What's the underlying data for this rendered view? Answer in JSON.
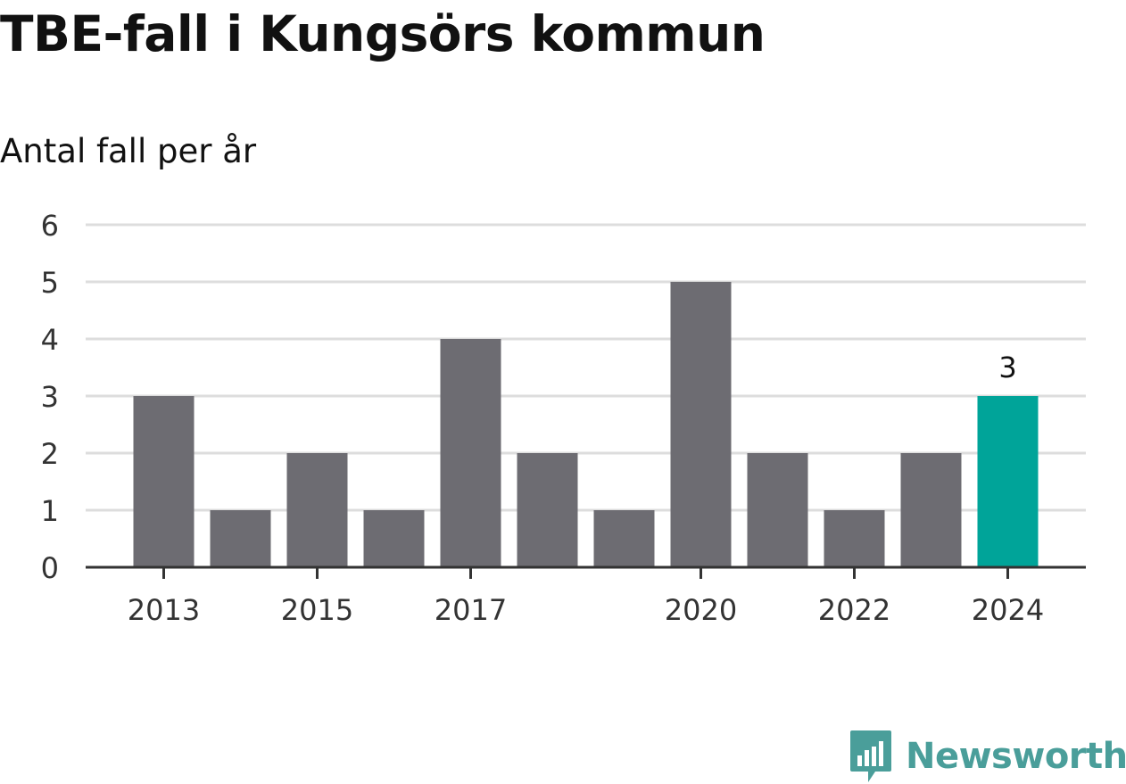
{
  "title": "TBE-fall i Kungsörs kommun",
  "subtitle": "Antal fall per år",
  "brand": "Newsworthy",
  "colors": {
    "bar": "#6d6c72",
    "highlight": "#00a499",
    "grid": "#dddddd",
    "axis": "#333333",
    "brand": "#4a9e9a"
  },
  "chart_data": {
    "type": "bar",
    "title": "TBE-fall i Kungsörs kommun",
    "subtitle": "Antal fall per år",
    "xlabel": "",
    "ylabel": "",
    "categories": [
      "2013",
      "2014",
      "2015",
      "2016",
      "2017",
      "2018",
      "2019",
      "2020",
      "2021",
      "2022",
      "2023",
      "2024"
    ],
    "values": [
      3,
      1,
      2,
      1,
      4,
      2,
      1,
      5,
      2,
      1,
      2,
      3
    ],
    "x_tick_labels": [
      "2013",
      "2015",
      "2017",
      "2020",
      "2022",
      "2024"
    ],
    "y_ticks": [
      0,
      1,
      2,
      3,
      4,
      5,
      6
    ],
    "ylim": [
      0,
      6
    ],
    "grid": true,
    "highlight_category": "2024",
    "data_labels": [
      {
        "category": "2024",
        "text": "3"
      }
    ]
  }
}
